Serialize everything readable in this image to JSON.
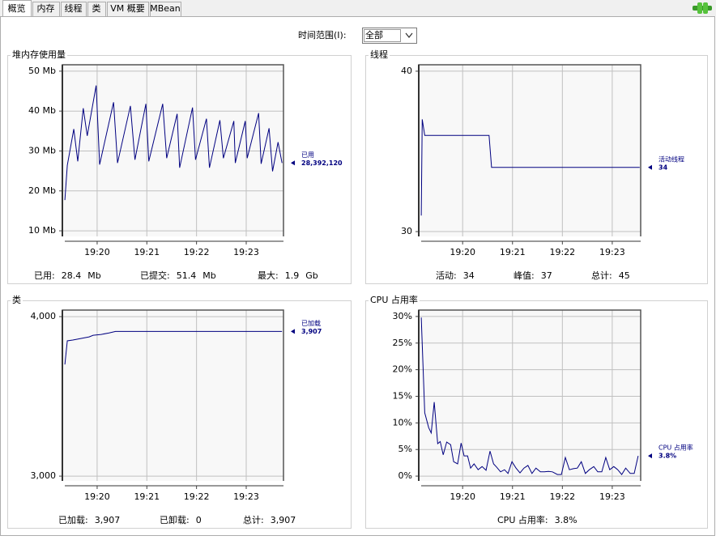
{
  "tabs": [
    "概览",
    "内存",
    "线程",
    "类",
    "VM 概要",
    "MBean"
  ],
  "time_range": {
    "label": "时间范围(I):",
    "value": "全部"
  },
  "chart_data": [
    {
      "type": "line",
      "title": "堆内存使用量",
      "xlim": [
        1159.3,
        1163.75
      ],
      "xticks": [
        {
          "value": 1160,
          "label": "19:20"
        },
        {
          "value": 1161,
          "label": "19:21"
        },
        {
          "value": 1162,
          "label": "19:22"
        },
        {
          "value": 1163,
          "label": "19:23"
        }
      ],
      "ylim": [
        8.6,
        51.6
      ],
      "yticks": [
        {
          "value": 10,
          "label": "10 Mb"
        },
        {
          "value": 20,
          "label": "20 Mb"
        },
        {
          "value": 30,
          "label": "30 Mb"
        },
        {
          "value": 40,
          "label": "40 Mb"
        },
        {
          "value": 50,
          "label": "50 Mb"
        }
      ],
      "grid": true,
      "series": [
        {
          "name": "已用",
          "color": "#000080",
          "current": "28,392,120",
          "x": [
            1159.35,
            1159.4,
            1159.53,
            1159.61,
            1159.72,
            1159.8,
            1159.98,
            1160.05,
            1160.33,
            1160.41,
            1160.67,
            1160.76,
            1160.98,
            1161.04,
            1161.32,
            1161.4,
            1161.61,
            1161.66,
            1161.92,
            1161.98,
            1162.2,
            1162.26,
            1162.47,
            1162.54,
            1162.75,
            1162.78,
            1162.98,
            1163.02,
            1163.25,
            1163.3,
            1163.46,
            1163.53,
            1163.64,
            1163.72
          ],
          "values": [
            17.7,
            26.4,
            35.5,
            27.4,
            40.7,
            33.8,
            46.4,
            26.6,
            42.2,
            27.0,
            41.3,
            27.8,
            41.8,
            27.4,
            41.8,
            28.2,
            39.3,
            25.8,
            40.9,
            27.8,
            38.1,
            25.8,
            37.7,
            28.2,
            37.5,
            27.0,
            37.5,
            28.2,
            39.5,
            26.8,
            35.7,
            24.9,
            32.2,
            27.0
          ]
        }
      ],
      "stats": [
        {
          "label": "已用:",
          "value": "28.4",
          "unit": "Mb"
        },
        {
          "label": "已提交:",
          "value": "51.4",
          "unit": "Mb"
        },
        {
          "label": "最大:",
          "value": "1.9",
          "unit": "Gb"
        }
      ]
    },
    {
      "type": "line",
      "title": "线程",
      "xlim": [
        1159.12,
        1163.57
      ],
      "xticks": [
        {
          "value": 1160,
          "label": "19:20"
        },
        {
          "value": 1161,
          "label": "19:21"
        },
        {
          "value": 1162,
          "label": "19:22"
        },
        {
          "value": 1163,
          "label": "19:23"
        }
      ],
      "ylim": [
        29.7,
        40.4
      ],
      "yticks": [
        30,
        40
      ],
      "grid": true,
      "series": [
        {
          "name": "活动线程",
          "color": "#000080",
          "current": "34",
          "x": [
            1159.17,
            1159.19,
            1159.24,
            1160.53,
            1160.58,
            1163.55
          ],
          "values": [
            31,
            37,
            36,
            36,
            34,
            34
          ]
        }
      ],
      "stats": [
        {
          "label": "活动:",
          "value": "34"
        },
        {
          "label": "峰值:",
          "value": "37"
        },
        {
          "label": "总计:",
          "value": "45"
        }
      ]
    },
    {
      "type": "line",
      "title": "类",
      "xlim": [
        1159.3,
        1163.75
      ],
      "xticks": [
        {
          "value": 1160,
          "label": "19:20"
        },
        {
          "value": 1161,
          "label": "19:21"
        },
        {
          "value": 1162,
          "label": "19:22"
        },
        {
          "value": 1163,
          "label": "19:23"
        }
      ],
      "ylim": [
        2970,
        4041
      ],
      "yticks": [
        {
          "value": 3000,
          "label": "3,000"
        },
        {
          "value": 4000,
          "label": "4,000"
        }
      ],
      "grid": true,
      "series": [
        {
          "name": "已加载",
          "color": "#000080",
          "current": "3,907",
          "x": [
            1159.35,
            1159.4,
            1159.51,
            1159.67,
            1159.84,
            1159.92,
            1160.08,
            1160.24,
            1160.37,
            1163.72
          ],
          "values": [
            3700,
            3848,
            3853,
            3863,
            3873,
            3883,
            3888,
            3898,
            3907,
            3907
          ]
        }
      ],
      "stats": [
        {
          "label": "已加载:",
          "value": "3,907"
        },
        {
          "label": "已卸载:",
          "value": "0"
        },
        {
          "label": "总计:",
          "value": "3,907"
        }
      ]
    },
    {
      "type": "line",
      "title": "CPU 占用率",
      "xlim": [
        1159.12,
        1163.57
      ],
      "xticks": [
        {
          "value": 1160,
          "label": "19:20"
        },
        {
          "value": 1161,
          "label": "19:21"
        },
        {
          "value": 1162,
          "label": "19:22"
        },
        {
          "value": 1163,
          "label": "19:23"
        }
      ],
      "ylim": [
        -0.9,
        31.2
      ],
      "yticks": [
        {
          "value": 0,
          "label": "0%"
        },
        {
          "value": 5,
          "label": "5%"
        },
        {
          "value": 10,
          "label": "10%"
        },
        {
          "value": 15,
          "label": "15%"
        },
        {
          "value": 20,
          "label": "20%"
        },
        {
          "value": 25,
          "label": "25%"
        },
        {
          "value": 30,
          "label": "30%"
        }
      ],
      "grid": true,
      "series": [
        {
          "name": "CPU 占用率",
          "color": "#000080",
          "current": "3.8%",
          "x": [
            1159.17,
            1159.24,
            1159.32,
            1159.37,
            1159.43,
            1159.5,
            1159.55,
            1159.61,
            1159.68,
            1159.76,
            1159.82,
            1159.9,
            1159.97,
            1160.03,
            1160.1,
            1160.16,
            1160.23,
            1160.31,
            1160.39,
            1160.47,
            1160.55,
            1160.62,
            1160.68,
            1160.76,
            1160.84,
            1160.91,
            1160.99,
            1161.07,
            1161.15,
            1161.23,
            1161.31,
            1161.39,
            1161.47,
            1161.56,
            1161.64,
            1161.72,
            1161.8,
            1161.9,
            1161.98,
            1162.06,
            1162.14,
            1162.22,
            1162.3,
            1162.38,
            1162.46,
            1162.54,
            1162.63,
            1162.71,
            1162.79,
            1162.87,
            1162.95,
            1163.03,
            1163.11,
            1163.19,
            1163.27,
            1163.36,
            1163.44,
            1163.52
          ],
          "values": [
            29.8,
            11.9,
            9.1,
            8.1,
            13.9,
            6.1,
            6.5,
            4.0,
            6.4,
            5.9,
            2.7,
            2.3,
            6.2,
            3.8,
            3.8,
            1.5,
            2.3,
            1.2,
            1.8,
            1.1,
            4.7,
            2.3,
            1.7,
            0.8,
            1.2,
            0.5,
            2.7,
            1.5,
            0.6,
            1.5,
            2.0,
            0.5,
            1.5,
            0.8,
            0.8,
            0.9,
            0.8,
            0.3,
            0.3,
            3.5,
            1.2,
            1.4,
            1.5,
            2.7,
            0.5,
            1.2,
            1.8,
            0.8,
            0.8,
            3.5,
            1.2,
            1.8,
            1.2,
            0.3,
            1.5,
            0.5,
            0.5,
            3.8
          ]
        }
      ],
      "stats": [
        {
          "label": "CPU 占用率:",
          "value": "3.8%"
        }
      ]
    }
  ]
}
